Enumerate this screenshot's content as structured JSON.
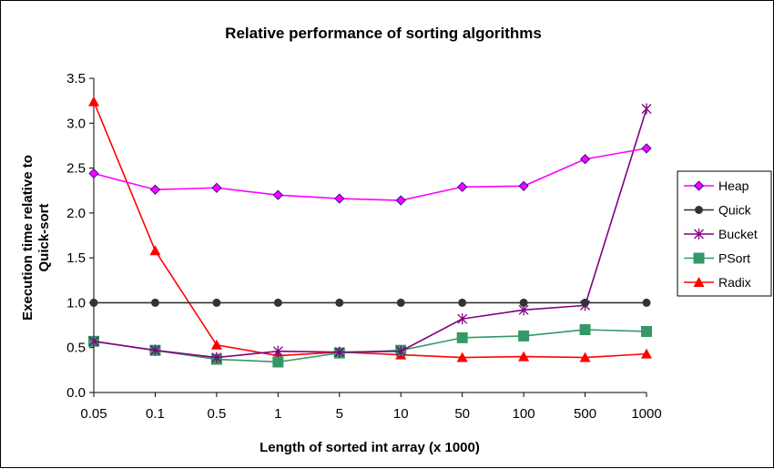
{
  "chart_data": {
    "type": "line",
    "title": "Relative performance of sorting algorithms",
    "xlabel": "Length of sorted int array (x 1000)",
    "ylabel_lines": [
      "Execution time relative to",
      "Quick-sort"
    ],
    "categories": [
      "0.05",
      "0.1",
      "0.5",
      "1",
      "5",
      "10",
      "50",
      "100",
      "500",
      "1000"
    ],
    "yticks": [
      "0.0",
      "0.5",
      "1.0",
      "1.5",
      "2.0",
      "2.5",
      "3.0",
      "3.5"
    ],
    "ylim": [
      0,
      3.5
    ],
    "grid": false,
    "legend_position": "right",
    "series": [
      {
        "name": "Heap",
        "color": "#ff00ff",
        "marker": "diamond",
        "values": [
          2.44,
          2.26,
          2.28,
          2.2,
          2.16,
          2.14,
          2.29,
          2.3,
          2.6,
          2.72
        ]
      },
      {
        "name": "Quick",
        "color": "#333333",
        "marker": "circle",
        "values": [
          1.0,
          1.0,
          1.0,
          1.0,
          1.0,
          1.0,
          1.0,
          1.0,
          1.0,
          1.0
        ]
      },
      {
        "name": "Bucket",
        "color": "#800080",
        "marker": "asterisk",
        "values": [
          0.57,
          0.47,
          0.39,
          0.46,
          0.45,
          0.46,
          0.82,
          0.92,
          0.97,
          3.16
        ]
      },
      {
        "name": "PSort",
        "color": "#339966",
        "marker": "square",
        "values": [
          0.57,
          0.47,
          0.37,
          0.34,
          0.44,
          0.47,
          0.61,
          0.63,
          0.7,
          0.68
        ]
      },
      {
        "name": "Radix",
        "color": "#ff0000",
        "marker": "triangle",
        "values": [
          3.24,
          1.58,
          0.53,
          0.41,
          0.45,
          0.42,
          0.39,
          0.4,
          0.39,
          0.43
        ]
      }
    ]
  }
}
